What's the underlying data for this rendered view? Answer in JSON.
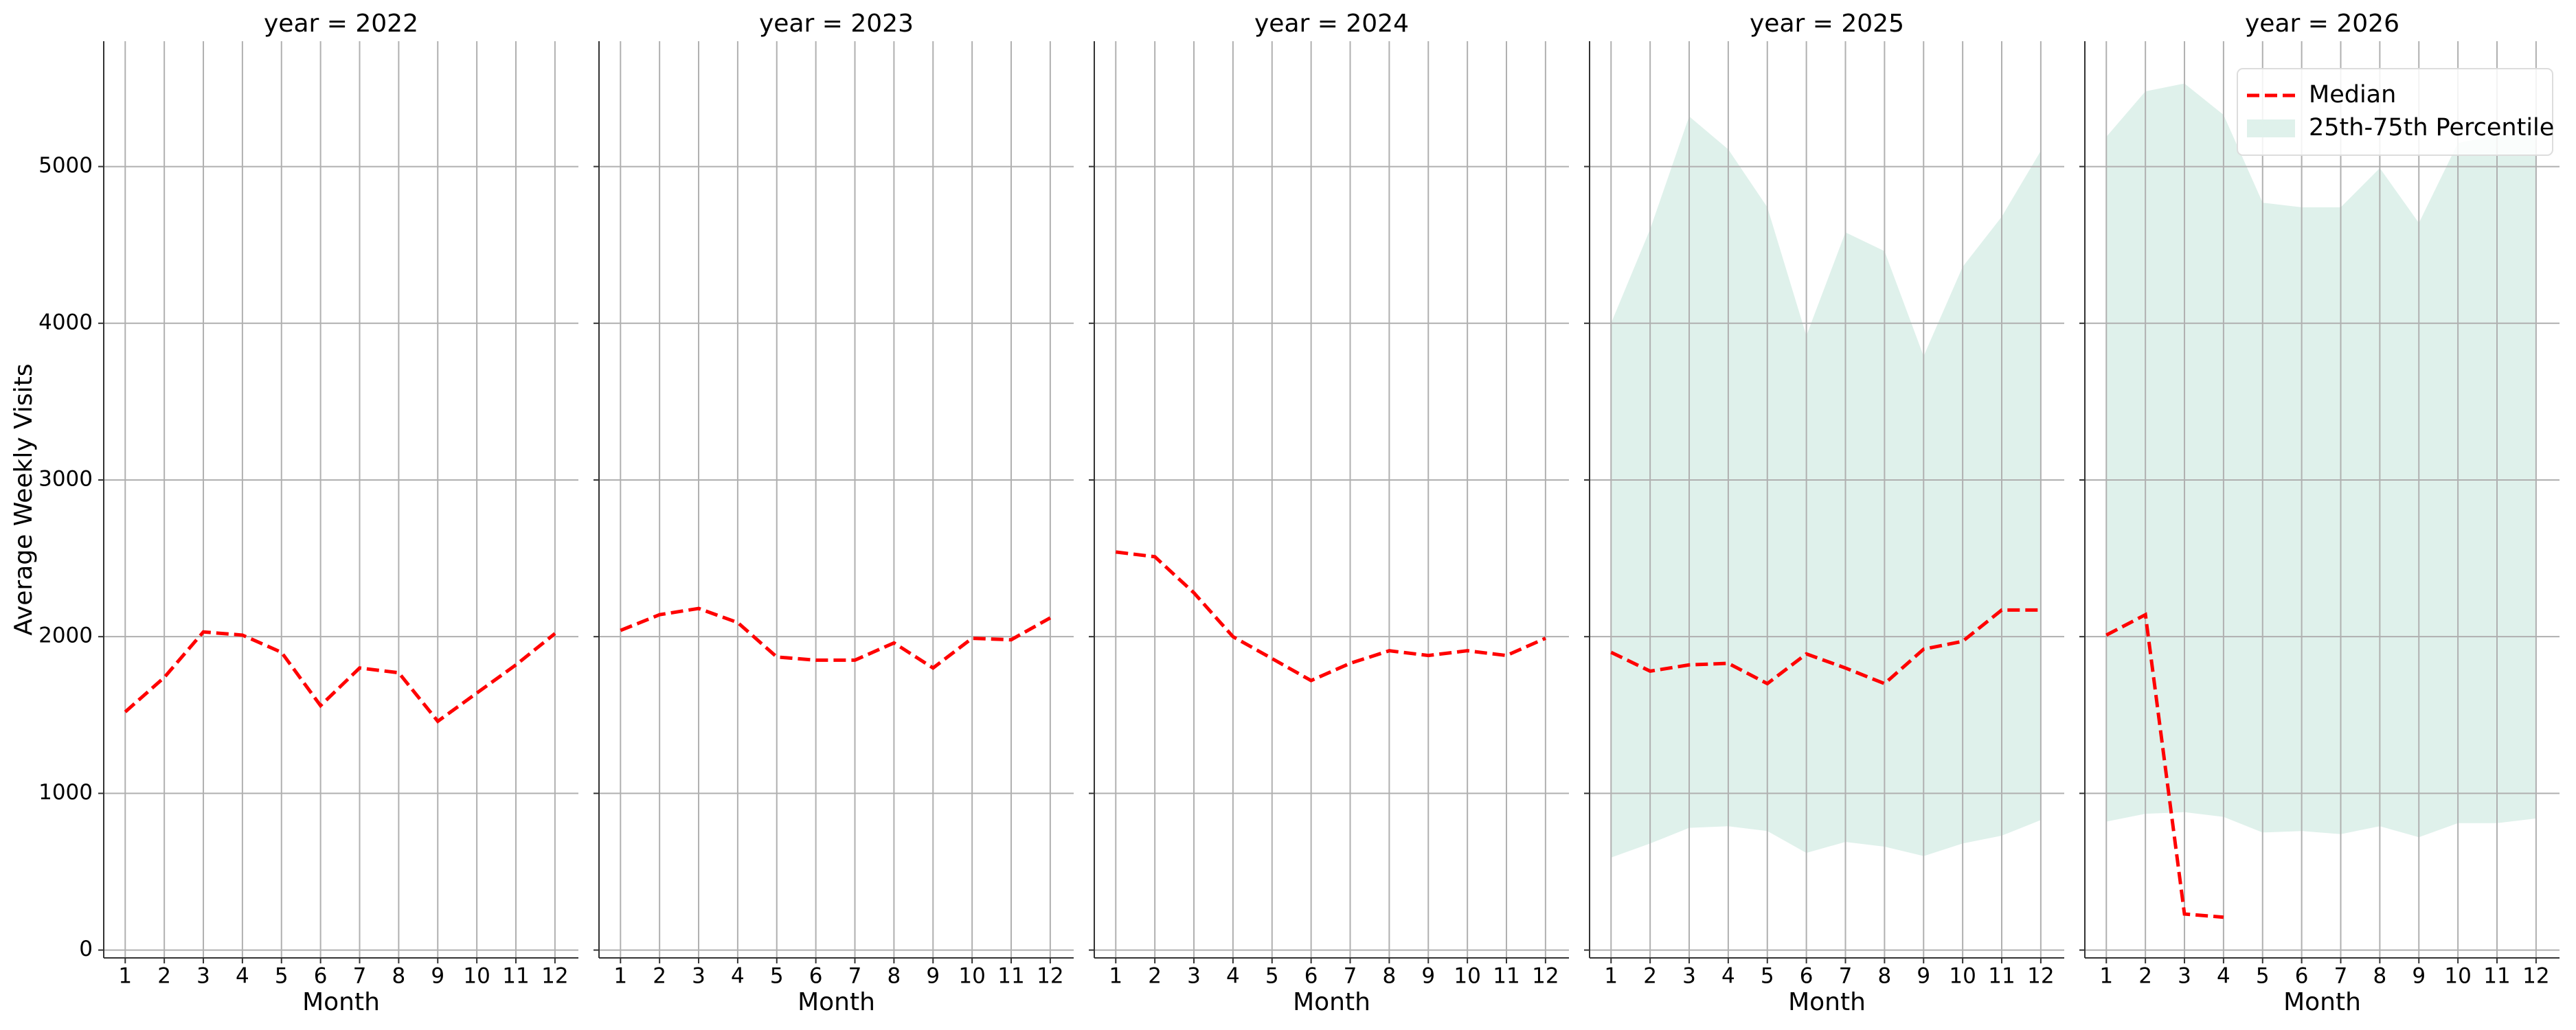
{
  "chart_data": [
    {
      "type": "line",
      "title": "year = 2022",
      "xlabel": "Month",
      "ylabel": "Average Weekly Visits",
      "show_yticklabels": true,
      "x": [
        1,
        2,
        3,
        4,
        5,
        6,
        7,
        8,
        9,
        10,
        11,
        12
      ],
      "xlim": [
        0.45,
        12.6
      ],
      "xticks": [
        1,
        2,
        3,
        4,
        5,
        6,
        7,
        8,
        9,
        10,
        11,
        12
      ],
      "ylim": [
        -50,
        5800
      ],
      "yticks": [
        0,
        1000,
        2000,
        3000,
        4000,
        5000
      ],
      "grid": true,
      "series": [
        {
          "color": "#ff0000",
          "values": [
            1520,
            1740,
            2030,
            2010,
            1900,
            1560,
            1800,
            1770,
            1460,
            1640,
            1820,
            2020
          ]
        }
      ]
    },
    {
      "type": "line",
      "title": "year = 2023",
      "xlabel": "Month",
      "show_yticklabels": false,
      "x": [
        1,
        2,
        3,
        4,
        5,
        6,
        7,
        8,
        9,
        10,
        11,
        12
      ],
      "xlim": [
        0.45,
        12.6
      ],
      "xticks": [
        1,
        2,
        3,
        4,
        5,
        6,
        7,
        8,
        9,
        10,
        11,
        12
      ],
      "ylim": [
        -50,
        5800
      ],
      "yticks": [
        0,
        1000,
        2000,
        3000,
        4000,
        5000
      ],
      "grid": true,
      "series": [
        {
          "color": "#ff0000",
          "values": [
            2040,
            2140,
            2180,
            2090,
            1870,
            1850,
            1850,
            1960,
            1800,
            1990,
            1980,
            2120
          ]
        }
      ]
    },
    {
      "type": "line",
      "title": "year = 2024",
      "xlabel": "Month",
      "show_yticklabels": false,
      "x": [
        1,
        2,
        3,
        4,
        5,
        6,
        7,
        8,
        9,
        10,
        11,
        12
      ],
      "xlim": [
        0.45,
        12.6
      ],
      "xticks": [
        1,
        2,
        3,
        4,
        5,
        6,
        7,
        8,
        9,
        10,
        11,
        12
      ],
      "ylim": [
        -50,
        5800
      ],
      "yticks": [
        0,
        1000,
        2000,
        3000,
        4000,
        5000
      ],
      "grid": true,
      "series": [
        {
          "color": "#ff0000",
          "values": [
            2540,
            2510,
            2280,
            2000,
            1860,
            1720,
            1830,
            1910,
            1880,
            1910,
            1880,
            1990
          ]
        }
      ]
    },
    {
      "type": "line",
      "title": "year = 2025",
      "xlabel": "Month",
      "show_yticklabels": false,
      "x": [
        1,
        2,
        3,
        4,
        5,
        6,
        7,
        8,
        9,
        10,
        11,
        12
      ],
      "xlim": [
        0.45,
        12.6
      ],
      "xticks": [
        1,
        2,
        3,
        4,
        5,
        6,
        7,
        8,
        9,
        10,
        11,
        12
      ],
      "ylim": [
        -50,
        5800
      ],
      "yticks": [
        0,
        1000,
        2000,
        3000,
        4000,
        5000
      ],
      "grid": true,
      "band": {
        "color": "#dff1eb",
        "lower": [
          590,
          680,
          780,
          790,
          760,
          620,
          690,
          660,
          600,
          680,
          730,
          830
        ],
        "upper": [
          4000,
          4600,
          5320,
          5110,
          4740,
          3920,
          4580,
          4460,
          3790,
          4360,
          4680,
          5100
        ]
      },
      "series": [
        {
          "color": "#ff0000",
          "values": [
            1900,
            1780,
            1820,
            1830,
            1700,
            1890,
            1800,
            1700,
            1920,
            1970,
            2170,
            2170
          ]
        }
      ]
    },
    {
      "type": "line",
      "title": "year = 2026",
      "xlabel": "Month",
      "show_yticklabels": false,
      "legend": "upper right",
      "x": [
        1,
        2,
        3,
        4,
        5,
        6,
        7,
        8,
        9,
        10,
        11,
        12
      ],
      "xlim": [
        0.45,
        12.6
      ],
      "xticks": [
        1,
        2,
        3,
        4,
        5,
        6,
        7,
        8,
        9,
        10,
        11,
        12
      ],
      "ylim": [
        -50,
        5800
      ],
      "yticks": [
        0,
        1000,
        2000,
        3000,
        4000,
        5000
      ],
      "grid": true,
      "band": {
        "name": "25th-75th Percentile",
        "color": "#dff1eb",
        "lower": [
          820,
          870,
          880,
          850,
          750,
          760,
          740,
          790,
          720,
          810,
          810,
          840
        ],
        "upper": [
          5190,
          5480,
          5530,
          5330,
          4770,
          4740,
          4740,
          4990,
          4640,
          5150,
          5200,
          5200
        ]
      },
      "series": [
        {
          "name": "Median",
          "color": "#ff0000",
          "values": [
            2010,
            2140,
            230,
            210,
            null,
            null,
            null,
            null,
            null,
            null,
            null,
            null
          ]
        }
      ]
    }
  ]
}
